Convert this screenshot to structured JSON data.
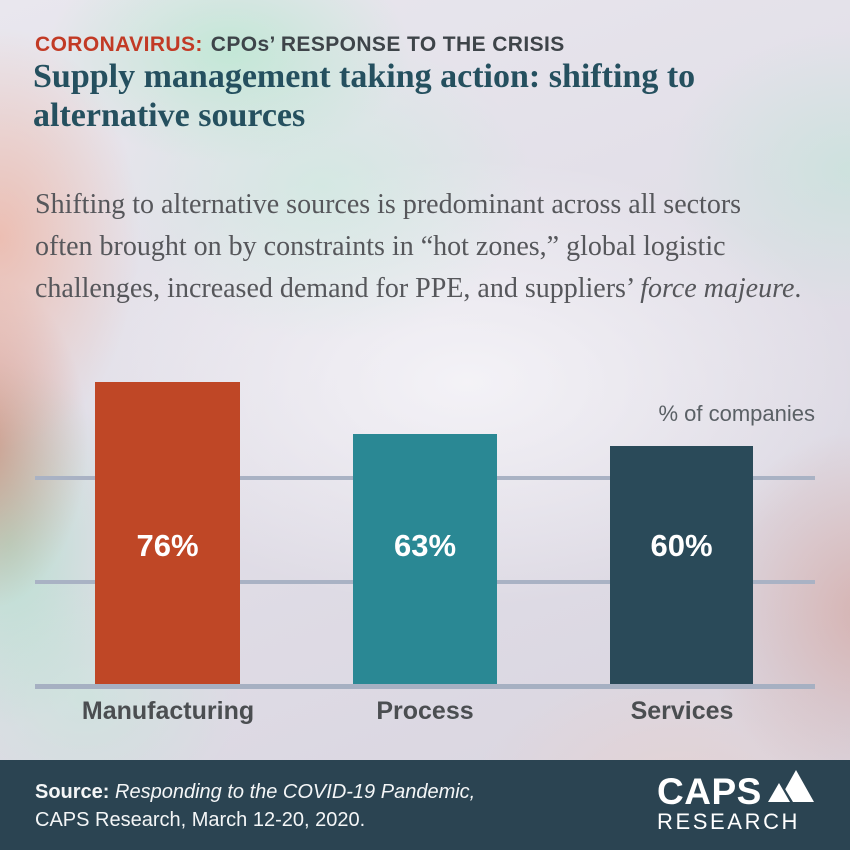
{
  "kicker": {
    "highlight": "CORONAVIRUS:",
    "rest": "CPOs’ RESPONSE TO THE CRISIS"
  },
  "title": "Supply management taking action: shifting to alternative sources",
  "intro": {
    "lead": "Shifting to alternative sources is predominant across all sectors often brought on by constraints in “hot zones,” global logistic challenges, increased demand for PPE, and suppliers’ ",
    "italic": "force majeure",
    "tail": "."
  },
  "chart_data": {
    "type": "bar",
    "categories": [
      "Manufacturing",
      "Process",
      "Services"
    ],
    "values": [
      76,
      63,
      60
    ],
    "value_labels": [
      "76%",
      "63%",
      "60%"
    ],
    "unit_label": "% of companies",
    "bar_colors": [
      "#bf4726",
      "#2a8894",
      "#2a4a59"
    ],
    "ylim": [
      0,
      100
    ],
    "grid": "horizontal",
    "legend_position": "none"
  },
  "footer": {
    "source_label": "Source:",
    "source_title": "Responding to the COVID-19 Pandemic,",
    "source_detail": "CAPS Research, March 12-20, 2020.",
    "logo_line1": "CAPS",
    "logo_line2": "RESEARCH",
    "logo_icon": "mountain-icon"
  },
  "colors": {
    "accent_red": "#c23a25",
    "kicker_gray": "#3e4449",
    "title_teal": "#25505f",
    "body_gray": "#56575b",
    "gridline": "#a9b2c4",
    "footer_bg": "#2b4452",
    "value_text": "#ffffff"
  }
}
